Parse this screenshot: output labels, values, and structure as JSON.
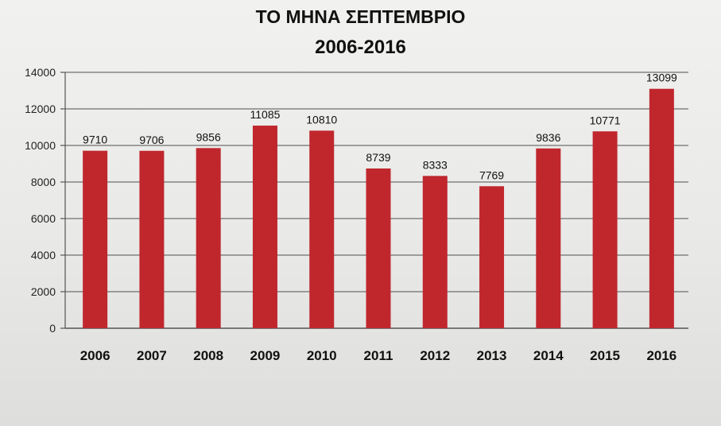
{
  "chart_data": {
    "type": "bar",
    "title": "ΤΟ ΜΗΝΑ ΣΕΠΤΕΜΒΡΙΟ",
    "subtitle": "2006-2016",
    "xlabel": "",
    "ylabel": "",
    "categories": [
      "2006",
      "2007",
      "2008",
      "2009",
      "2010",
      "2011",
      "2012",
      "2013",
      "2014",
      "2015",
      "2016"
    ],
    "values": [
      9710,
      9706,
      9856,
      11085,
      10810,
      8739,
      8333,
      7769,
      9836,
      10771,
      13099
    ],
    "data_labels": [
      "9710",
      "9706",
      "9856",
      "11085",
      "10810",
      "8739",
      "8333",
      "7769",
      "9836",
      "10771",
      "13099"
    ],
    "yticks": [
      "0",
      "2000",
      "4000",
      "6000",
      "8000",
      "10000",
      "12000",
      "14000"
    ],
    "ylim": [
      0,
      14000
    ],
    "grid": true,
    "legend": "none",
    "bar_color": "#c0272d"
  }
}
